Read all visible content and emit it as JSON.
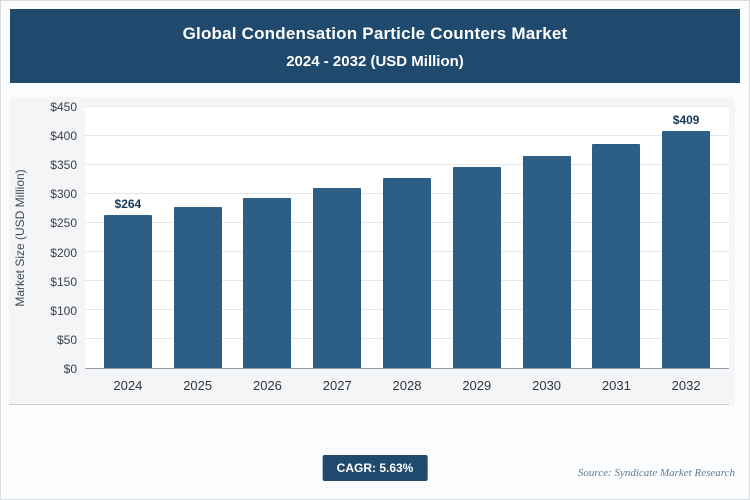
{
  "header": {
    "title_line1": "Global Condensation Particle Counters Market",
    "title_line2": "2024 - 2032 (USD Million)"
  },
  "chart_data": {
    "type": "bar",
    "title": "Global Condensation Particle Counters Market 2024 - 2032 (USD Million)",
    "categories": [
      "2024",
      "2025",
      "2026",
      "2027",
      "2028",
      "2029",
      "2030",
      "2031",
      "2032"
    ],
    "values": [
      264,
      278,
      293,
      310,
      327,
      346,
      365,
      386,
      409
    ],
    "data_labels": [
      "$264",
      "",
      "",
      "",
      "",
      "",
      "",
      "",
      "$409"
    ],
    "xlabel": "",
    "ylabel": "Market Size (USD Million)",
    "ylim": [
      0,
      450
    ],
    "ytick_step": 50,
    "ytick_prefix": "$",
    "grid": true,
    "legend": "none",
    "bar_color": "#2d5e86"
  },
  "footer": {
    "cagr_label": "CAGR: 5.63%",
    "source": "Source: Syndicate Market Research"
  }
}
